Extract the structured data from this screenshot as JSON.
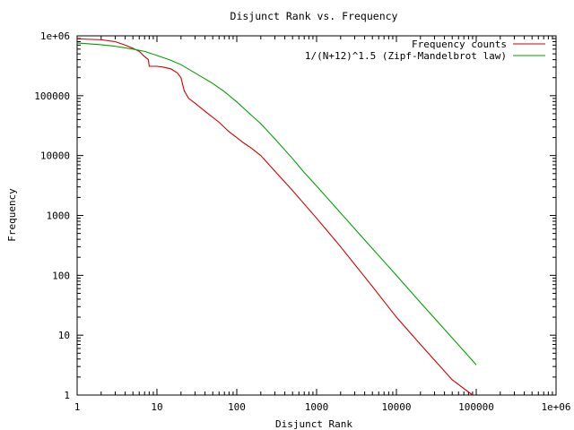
{
  "chart_data": {
    "type": "line",
    "title": "Disjunct Rank vs. Frequency",
    "xlabel": "Disjunct Rank",
    "ylabel": "Frequency",
    "xscale": "log",
    "yscale": "log",
    "xlim": [
      1,
      1000000
    ],
    "ylim": [
      1,
      1000000
    ],
    "x_ticks": [
      {
        "value": 1,
        "label": "1"
      },
      {
        "value": 10,
        "label": "10"
      },
      {
        "value": 100,
        "label": "100"
      },
      {
        "value": 1000,
        "label": "1000"
      },
      {
        "value": 10000,
        "label": "10000"
      },
      {
        "value": 100000,
        "label": "100000"
      },
      {
        "value": 1000000,
        "label": "1e+06"
      }
    ],
    "y_ticks": [
      {
        "value": 1,
        "label": "1"
      },
      {
        "value": 10,
        "label": "10"
      },
      {
        "value": 100,
        "label": "100"
      },
      {
        "value": 1000,
        "label": "1000"
      },
      {
        "value": 10000,
        "label": "10000"
      },
      {
        "value": 100000,
        "label": "100000"
      },
      {
        "value": 1000000,
        "label": "1e+06"
      }
    ],
    "grid": false,
    "legend_position": "top-right",
    "series": [
      {
        "name": "Frequency counts",
        "color": "#cc0000",
        "x": [
          1,
          2,
          3,
          4,
          5,
          6,
          7,
          7.8,
          8,
          10,
          12,
          15,
          18,
          20,
          22,
          25,
          30,
          40,
          60,
          80,
          100,
          120,
          150,
          200,
          300,
          500,
          1000,
          2000,
          5000,
          10000,
          20000,
          50000,
          90000
        ],
        "y": [
          890000,
          860000,
          800000,
          700000,
          620000,
          550000,
          450000,
          400000,
          310000,
          310000,
          300000,
          280000,
          240000,
          200000,
          120000,
          90000,
          75000,
          55000,
          36000,
          25000,
          20000,
          16500,
          13500,
          10000,
          5500,
          2600,
          900,
          300,
          65,
          20,
          7,
          1.8,
          1
        ]
      },
      {
        "name": "1/(N+12)^1.5 (Zipf-Mandelbrot law)",
        "color": "#00a000",
        "x": [
          1,
          2,
          3,
          5,
          7,
          10,
          15,
          20,
          30,
          50,
          70,
          100,
          150,
          200,
          300,
          500,
          700,
          1000,
          2000,
          3000,
          5000,
          7000,
          10000,
          20000,
          50000,
          100000
        ],
        "y": [
          760000,
          710000,
          670000,
          600000,
          550000,
          470000,
          390000,
          330000,
          240000,
          160000,
          117000,
          79000,
          48000,
          34000,
          19000,
          8900,
          5200,
          3100,
          1100,
          600,
          280,
          170,
          100,
          35,
          9,
          3.2
        ]
      }
    ]
  }
}
